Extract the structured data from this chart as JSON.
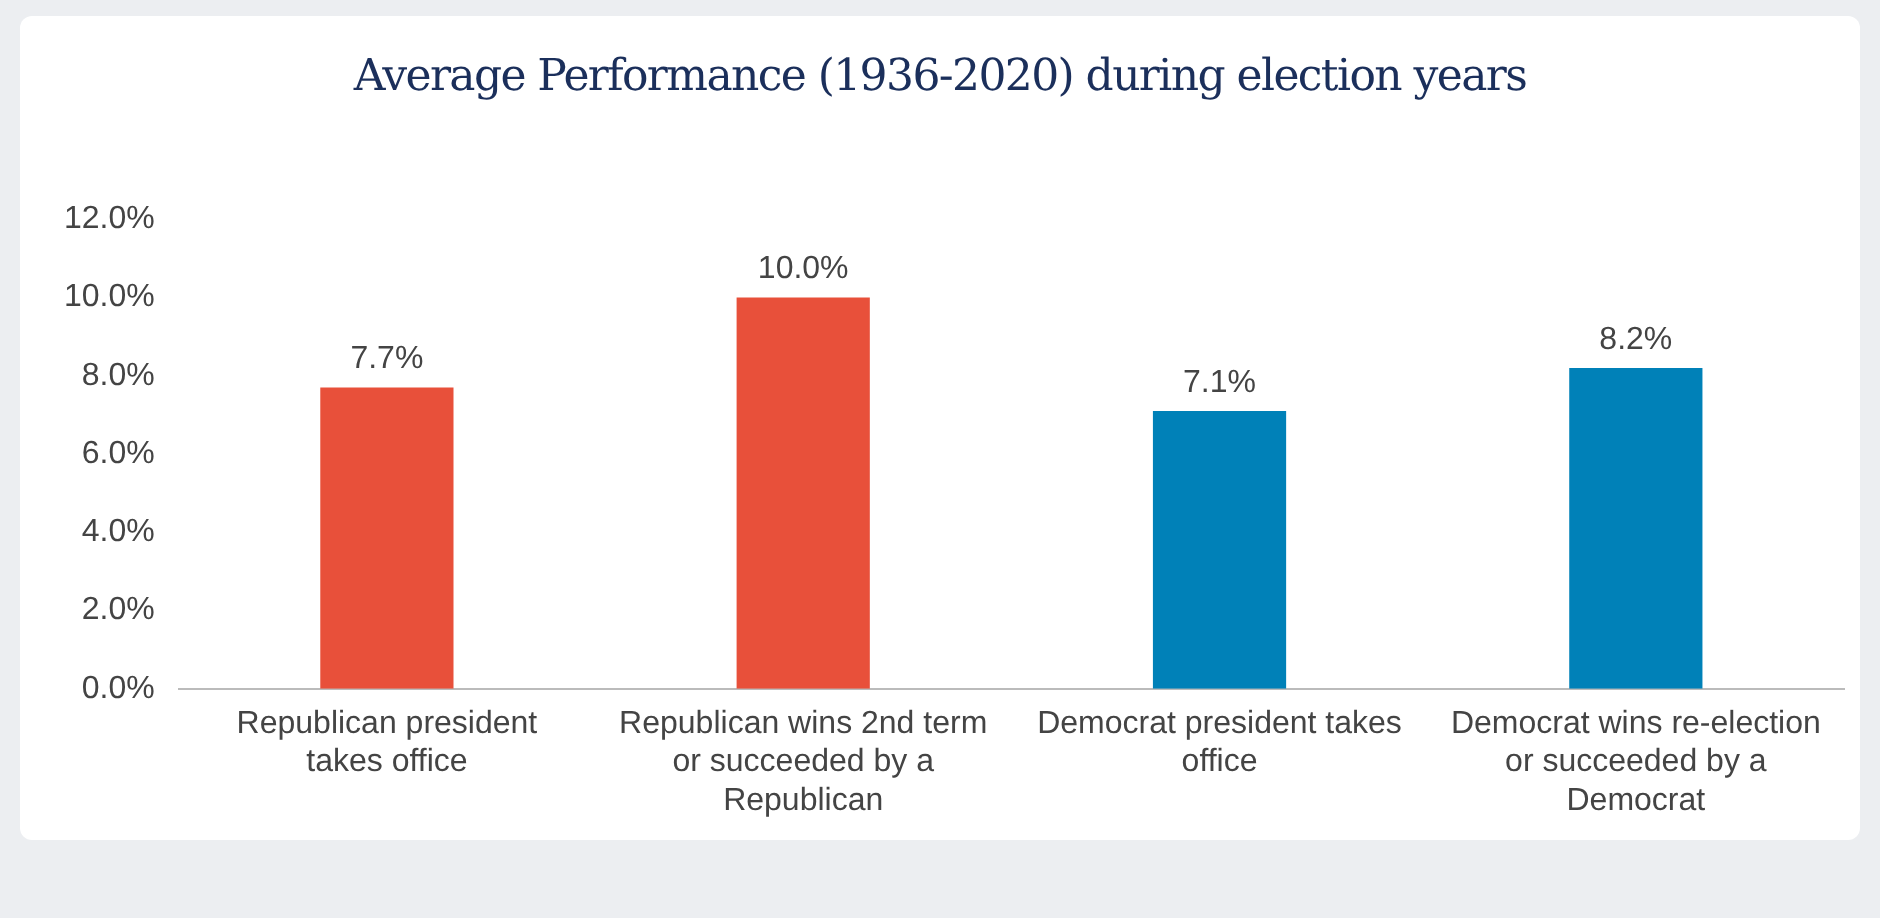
{
  "chart_data": {
    "type": "bar",
    "title": "Average Performance (1936-2020) during election years",
    "categories": [
      "Republican president takes office",
      "Republican wins 2nd term or succeeded by a Republican",
      "Democrat president takes office",
      "Democrat wins re-election or succeeded by a Democrat"
    ],
    "values": [
      7.7,
      10.0,
      7.1,
      8.2
    ],
    "colors": [
      "#e8503a",
      "#e8503a",
      "#0081b8",
      "#0081b8"
    ],
    "value_labels": [
      "7.7%",
      "10.0%",
      "7.1%",
      "8.2%"
    ],
    "ylim": [
      0,
      12
    ],
    "yticks": [
      {
        "value": 0,
        "label": "0.0%"
      },
      {
        "value": 2,
        "label": "2.0%"
      },
      {
        "value": 4,
        "label": "4.0%"
      },
      {
        "value": 6,
        "label": "6.0%"
      },
      {
        "value": 8,
        "label": "8.0%"
      },
      {
        "value": 10,
        "label": "10.0%"
      },
      {
        "value": 12,
        "label": "12.0%"
      }
    ],
    "grid": false,
    "legend": false
  }
}
